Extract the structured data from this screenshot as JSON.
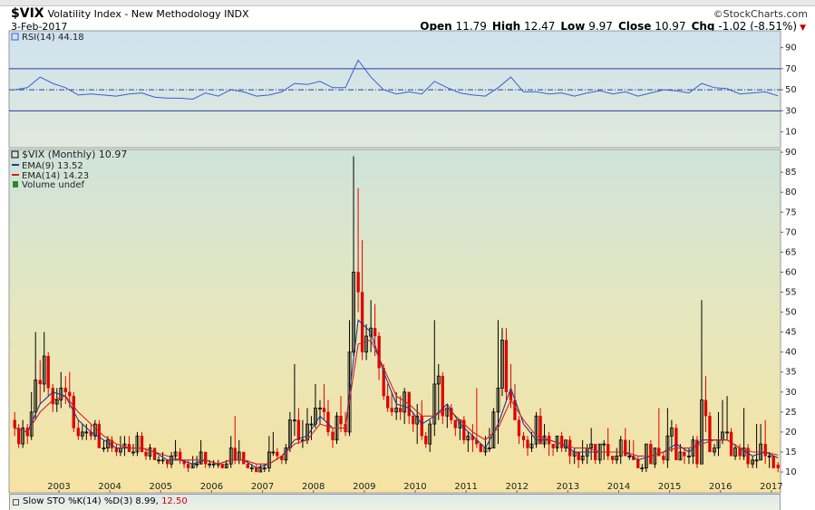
{
  "chart_data": {
    "type": "candlestick",
    "title": "$VIX",
    "subtitle": "Volatility Index - New Methodology INDX",
    "source": "©StockCharts.com",
    "date": "3-Feb-2017",
    "quote": [
      {
        "label": "Open",
        "value": 11.79
      },
      {
        "label": "High",
        "value": 12.47
      },
      {
        "label": "Low",
        "value": 9.97
      },
      {
        "label": "Close",
        "value": 10.97
      },
      {
        "label": "Chg",
        "value": -1.02,
        "pct": "(-8.51%)"
      }
    ],
    "xlim": [
      2002.02,
      2017.18
    ],
    "xticks": [
      2003,
      2004,
      2005,
      2006,
      2007,
      2008,
      2009,
      2010,
      2011,
      2012,
      2013,
      2014,
      2015,
      2016,
      2017
    ],
    "ylim": [
      5.7,
      90.7
    ],
    "yticks": [
      10,
      15,
      20,
      25,
      30,
      35,
      40,
      45,
      50,
      55,
      60,
      65,
      70,
      75,
      80,
      85,
      90
    ],
    "candles": {
      "name": "$VIX (Monthly) 10.97",
      "up_color": "#000000",
      "down_color": "#e00000",
      "x": [
        2002.13,
        2002.21,
        2002.29,
        2002.38,
        2002.46,
        2002.54,
        2002.63,
        2002.71,
        2002.79,
        2002.88,
        2002.96,
        2003.04,
        2003.13,
        2003.21,
        2003.29,
        2003.38,
        2003.46,
        2003.54,
        2003.63,
        2003.71,
        2003.79,
        2003.88,
        2003.96,
        2004.04,
        2004.13,
        2004.21,
        2004.29,
        2004.38,
        2004.46,
        2004.54,
        2004.63,
        2004.71,
        2004.79,
        2004.88,
        2004.96,
        2005.04,
        2005.13,
        2005.21,
        2005.29,
        2005.38,
        2005.46,
        2005.54,
        2005.63,
        2005.71,
        2005.79,
        2005.88,
        2005.96,
        2006.04,
        2006.13,
        2006.21,
        2006.29,
        2006.38,
        2006.46,
        2006.54,
        2006.63,
        2006.71,
        2006.79,
        2006.88,
        2006.96,
        2007.04,
        2007.13,
        2007.21,
        2007.29,
        2007.38,
        2007.46,
        2007.54,
        2007.63,
        2007.71,
        2007.79,
        2007.88,
        2007.96,
        2008.04,
        2008.13,
        2008.21,
        2008.29,
        2008.38,
        2008.46,
        2008.54,
        2008.63,
        2008.71,
        2008.79,
        2008.88,
        2008.96,
        2009.04,
        2009.13,
        2009.21,
        2009.29,
        2009.38,
        2009.46,
        2009.54,
        2009.63,
        2009.71,
        2009.79,
        2009.88,
        2009.96,
        2010.04,
        2010.13,
        2010.21,
        2010.29,
        2010.38,
        2010.46,
        2010.54,
        2010.63,
        2010.71,
        2010.79,
        2010.88,
        2010.96,
        2011.04,
        2011.13,
        2011.21,
        2011.29,
        2011.38,
        2011.46,
        2011.54,
        2011.63,
        2011.71,
        2011.79,
        2011.88,
        2011.96,
        2012.04,
        2012.13,
        2012.21,
        2012.29,
        2012.38,
        2012.46,
        2012.54,
        2012.63,
        2012.71,
        2012.79,
        2012.88,
        2012.96,
        2013.04,
        2013.13,
        2013.21,
        2013.29,
        2013.38,
        2013.46,
        2013.54,
        2013.63,
        2013.71,
        2013.79,
        2013.88,
        2013.96,
        2014.04,
        2014.13,
        2014.21,
        2014.29,
        2014.38,
        2014.46,
        2014.54,
        2014.63,
        2014.71,
        2014.79,
        2014.88,
        2014.96,
        2015.04,
        2015.13,
        2015.21,
        2015.29,
        2015.38,
        2015.46,
        2015.54,
        2015.63,
        2015.71,
        2015.79,
        2015.88,
        2015.96,
        2016.04,
        2016.13,
        2016.21,
        2016.29,
        2016.38,
        2016.46,
        2016.54,
        2016.63,
        2016.71,
        2016.79,
        2016.88,
        2016.96,
        2017.04,
        2017.13
      ],
      "open": [
        23,
        21,
        17,
        21,
        19,
        25,
        33,
        32,
        39,
        31,
        27,
        28,
        31,
        30,
        29,
        21,
        19,
        20,
        20,
        19,
        22,
        16,
        16,
        18,
        16,
        15,
        16,
        17,
        15,
        15,
        19,
        15,
        14,
        16,
        13,
        13,
        13,
        12,
        14,
        15,
        13,
        12,
        11,
        12,
        12,
        15,
        12,
        12,
        12,
        12,
        11,
        12,
        16,
        13,
        15,
        12,
        11,
        11,
        10,
        11,
        11,
        15,
        15,
        14,
        13,
        16,
        23,
        23,
        18,
        18,
        22,
        22,
        26,
        26,
        25,
        20,
        18,
        24,
        22,
        20,
        40,
        60,
        55,
        40,
        44,
        46,
        44,
        36,
        29,
        26,
        25,
        26,
        25,
        30,
        24,
        22,
        24,
        19,
        17,
        22,
        32,
        34,
        24,
        26,
        23,
        21,
        23,
        18,
        19,
        18,
        17,
        15,
        16,
        16,
        25,
        31,
        43,
        30,
        28,
        23,
        19,
        18,
        16,
        17,
        24,
        17,
        19,
        17,
        16,
        19,
        16,
        18,
        14,
        15,
        13,
        14,
        16,
        17,
        13,
        17,
        17,
        14,
        13,
        14,
        18,
        14,
        14,
        13,
        11,
        11,
        17,
        12,
        16,
        14,
        13,
        19,
        21,
        13,
        15,
        14,
        14,
        18,
        12,
        28,
        24,
        15,
        16,
        18,
        20,
        20,
        14,
        16,
        14,
        16,
        12,
        13,
        13,
        17,
        14,
        14,
        11.79
      ],
      "high": [
        25,
        22,
        23,
        22,
        30,
        45,
        38,
        45,
        40,
        32,
        31,
        35,
        34,
        35,
        30,
        23,
        22,
        22,
        22,
        23,
        23,
        18,
        19,
        19,
        17,
        19,
        19,
        19,
        17,
        20,
        20,
        16,
        17,
        16,
        14,
        15,
        13,
        15,
        18,
        16,
        13,
        13,
        14,
        14,
        18,
        15,
        13,
        13,
        13,
        12,
        13,
        19,
        24,
        18,
        15,
        13,
        12,
        12,
        12,
        12,
        19,
        20,
        16,
        14,
        17,
        25,
        37,
        26,
        23,
        26,
        24,
        32,
        28,
        32,
        28,
        21,
        25,
        29,
        25,
        48,
        89,
        81,
        68,
        47,
        53,
        52,
        45,
        37,
        32,
        30,
        30,
        29,
        31,
        30,
        25,
        27,
        28,
        20,
        23,
        48,
        37,
        35,
        27,
        27,
        23,
        23,
        24,
        20,
        22,
        31,
        17,
        19,
        21,
        26,
        48,
        46,
        46,
        37,
        32,
        24,
        20,
        19,
        20,
        25,
        26,
        22,
        20,
        17,
        19,
        20,
        18,
        19,
        16,
        15,
        18,
        17,
        21,
        17,
        17,
        18,
        21,
        14,
        16,
        19,
        21,
        18,
        18,
        14,
        12,
        17,
        18,
        16,
        26,
        15,
        26,
        23,
        22,
        17,
        16,
        16,
        19,
        19,
        53,
        34,
        25,
        17,
        25,
        28,
        29,
        21,
        17,
        17,
        26,
        17,
        14,
        22,
        22,
        23,
        15,
        14,
        12.47
      ],
      "low": [
        19,
        16,
        16,
        17,
        18,
        23,
        27,
        30,
        29,
        25,
        25,
        26,
        27,
        26,
        20,
        18,
        18,
        18,
        18,
        18,
        16,
        15,
        15,
        15,
        14,
        14,
        14,
        15,
        14,
        14,
        15,
        13,
        13,
        13,
        12,
        12,
        11,
        11,
        13,
        12,
        11,
        10,
        11,
        11,
        12,
        11,
        11,
        11,
        11,
        11,
        11,
        11,
        12,
        12,
        12,
        11,
        10,
        10,
        10,
        10,
        10,
        14,
        13,
        12,
        12,
        15,
        19,
        17,
        16,
        17,
        18,
        21,
        22,
        23,
        19,
        16,
        17,
        20,
        19,
        19,
        39,
        50,
        38,
        38,
        40,
        39,
        33,
        28,
        25,
        24,
        23,
        23,
        22,
        22,
        20,
        17,
        18,
        16,
        15,
        19,
        23,
        22,
        21,
        22,
        19,
        18,
        17,
        15,
        15,
        16,
        15,
        14,
        15,
        16,
        17,
        29,
        28,
        26,
        23,
        17,
        16,
        14,
        15,
        16,
        17,
        16,
        14,
        14,
        15,
        15,
        15,
        12,
        12,
        11,
        12,
        12,
        13,
        12,
        12,
        13,
        13,
        12,
        12,
        12,
        14,
        13,
        13,
        11,
        10,
        10,
        12,
        11,
        14,
        12,
        11,
        15,
        13,
        13,
        12,
        12,
        12,
        11,
        12,
        20,
        15,
        14,
        14,
        17,
        18,
        14,
        13,
        13,
        13,
        11,
        11,
        11,
        13,
        12,
        11,
        11,
        9.97
      ],
      "close": [
        21,
        17,
        21,
        19,
        25,
        33,
        32,
        39,
        31,
        27,
        28,
        31,
        30,
        29,
        21,
        19,
        20,
        20,
        19,
        22,
        16,
        16,
        18,
        16,
        15,
        16,
        17,
        15,
        15,
        19,
        15,
        14,
        16,
        13,
        13,
        13,
        12,
        14,
        15,
        13,
        12,
        11,
        12,
        12,
        15,
        12,
        12,
        12,
        12,
        11,
        12,
        16,
        13,
        15,
        12,
        11,
        11,
        10,
        11,
        11,
        15,
        15,
        14,
        13,
        16,
        23,
        23,
        18,
        18,
        22,
        22,
        26,
        26,
        25,
        20,
        18,
        24,
        22,
        20,
        40,
        60,
        55,
        40,
        44,
        46,
        44,
        36,
        29,
        26,
        25,
        26,
        25,
        30,
        24,
        22,
        24,
        19,
        17,
        22,
        32,
        34,
        24,
        26,
        23,
        21,
        23,
        18,
        19,
        18,
        17,
        15,
        16,
        16,
        25,
        31,
        43,
        30,
        28,
        23,
        19,
        18,
        16,
        17,
        24,
        17,
        19,
        17,
        16,
        19,
        16,
        18,
        14,
        15,
        13,
        14,
        16,
        17,
        13,
        17,
        17,
        14,
        13,
        14,
        18,
        14,
        14,
        13,
        11,
        11,
        17,
        12,
        16,
        14,
        13,
        19,
        21,
        13,
        15,
        14,
        14,
        18,
        12,
        28,
        24,
        15,
        16,
        18,
        20,
        20,
        14,
        16,
        14,
        16,
        12,
        13,
        13,
        17,
        14,
        14,
        11,
        10.97
      ]
    },
    "series": [
      {
        "name": "EMA(9) 13.52",
        "color": "#1f3a93",
        "x": [
          2002.13,
          2002.38,
          2002.63,
          2002.88,
          2003.13,
          2003.38,
          2003.63,
          2003.88,
          2004.13,
          2004.38,
          2004.63,
          2004.88,
          2005.13,
          2005.38,
          2005.63,
          2005.88,
          2006.13,
          2006.38,
          2006.63,
          2006.88,
          2007.13,
          2007.38,
          2007.63,
          2007.88,
          2008.13,
          2008.38,
          2008.63,
          2008.88,
          2009.13,
          2009.38,
          2009.63,
          2009.88,
          2010.13,
          2010.38,
          2010.63,
          2010.88,
          2011.13,
          2011.38,
          2011.63,
          2011.88,
          2012.13,
          2012.38,
          2012.63,
          2012.88,
          2013.13,
          2013.38,
          2013.63,
          2013.88,
          2014.13,
          2014.38,
          2014.63,
          2014.88,
          2015.13,
          2015.38,
          2015.63,
          2015.88,
          2016.13,
          2016.38,
          2016.63,
          2016.88,
          2017.13
        ],
        "values": [
          21,
          20,
          27,
          30,
          29,
          23,
          20,
          18,
          16,
          16,
          16,
          15,
          13,
          13,
          12,
          13,
          12,
          13,
          13,
          11,
          12,
          14,
          18,
          19,
          24,
          21,
          21,
          48,
          45,
          35,
          27,
          26,
          22,
          24,
          27,
          22,
          19,
          16,
          22,
          31,
          22,
          18,
          18,
          17,
          15,
          15,
          15,
          15,
          15,
          13,
          14,
          15,
          17,
          15,
          18,
          18,
          18,
          16,
          14,
          15,
          13.52
        ]
      },
      {
        "name": "EMA(14) 14.23",
        "color": "#d42020",
        "x": [
          2002.13,
          2002.38,
          2002.63,
          2002.88,
          2003.13,
          2003.38,
          2003.63,
          2003.88,
          2004.13,
          2004.38,
          2004.63,
          2004.88,
          2005.13,
          2005.38,
          2005.63,
          2005.88,
          2006.13,
          2006.38,
          2006.63,
          2006.88,
          2007.13,
          2007.38,
          2007.63,
          2007.88,
          2008.13,
          2008.38,
          2008.63,
          2008.88,
          2009.13,
          2009.38,
          2009.63,
          2009.88,
          2010.13,
          2010.38,
          2010.63,
          2010.88,
          2011.13,
          2011.38,
          2011.63,
          2011.88,
          2012.13,
          2012.38,
          2012.63,
          2012.88,
          2013.13,
          2013.38,
          2013.63,
          2013.88,
          2014.13,
          2014.38,
          2014.63,
          2014.88,
          2015.13,
          2015.38,
          2015.63,
          2015.88,
          2016.13,
          2016.38,
          2016.63,
          2016.88,
          2017.13
        ],
        "values": [
          21,
          20,
          25,
          28,
          29,
          25,
          22,
          19,
          17,
          16,
          16,
          15,
          14,
          13,
          13,
          13,
          12,
          13,
          13,
          12,
          12,
          14,
          17,
          18,
          22,
          21,
          21,
          42,
          43,
          36,
          29,
          27,
          24,
          24,
          26,
          23,
          20,
          18,
          21,
          28,
          23,
          19,
          18,
          17,
          16,
          16,
          15,
          15,
          15,
          14,
          14,
          15,
          16,
          16,
          17,
          18,
          18,
          16,
          15,
          15,
          14.23
        ]
      }
    ],
    "volume_label": "Volume undef",
    "volume_color": "#2a8a2a",
    "rsi": {
      "type": "line",
      "name": "RSI(14) 44.18",
      "color": "#3a5fcd",
      "ref_color": "#2a3f9a",
      "ylim": [
        -5,
        106
      ],
      "yticks": [
        10,
        30,
        50,
        70,
        90
      ],
      "ref_lines": [
        30,
        70
      ],
      "mid_line": 50,
      "x": [
        2002.13,
        2002.38,
        2002.63,
        2002.88,
        2003.13,
        2003.38,
        2003.63,
        2003.88,
        2004.13,
        2004.38,
        2004.63,
        2004.88,
        2005.13,
        2005.38,
        2005.63,
        2005.88,
        2006.13,
        2006.38,
        2006.63,
        2006.88,
        2007.13,
        2007.38,
        2007.63,
        2007.88,
        2008.13,
        2008.38,
        2008.63,
        2008.88,
        2009.13,
        2009.38,
        2009.63,
        2009.88,
        2010.13,
        2010.38,
        2010.63,
        2010.88,
        2011.13,
        2011.38,
        2011.63,
        2011.88,
        2012.13,
        2012.38,
        2012.63,
        2012.88,
        2013.13,
        2013.38,
        2013.63,
        2013.88,
        2014.13,
        2014.38,
        2014.63,
        2014.88,
        2015.13,
        2015.38,
        2015.63,
        2015.88,
        2016.13,
        2016.38,
        2016.63,
        2016.88,
        2017.13
      ],
      "values": [
        50,
        52,
        62,
        56,
        52,
        45,
        46,
        45,
        44,
        46,
        47,
        43,
        42,
        42,
        41,
        47,
        44,
        50,
        48,
        44,
        45,
        48,
        56,
        55,
        58,
        52,
        52,
        78,
        62,
        50,
        46,
        48,
        46,
        58,
        52,
        47,
        45,
        44,
        52,
        62,
        48,
        48,
        46,
        47,
        44,
        47,
        49,
        46,
        48,
        44,
        47,
        50,
        49,
        47,
        56,
        52,
        51,
        46,
        47,
        48,
        44.18
      ]
    },
    "lower_panel": {
      "title": "Slow STO %K(14) %D(3) 8.99,",
      "d_value": "12.50"
    }
  }
}
